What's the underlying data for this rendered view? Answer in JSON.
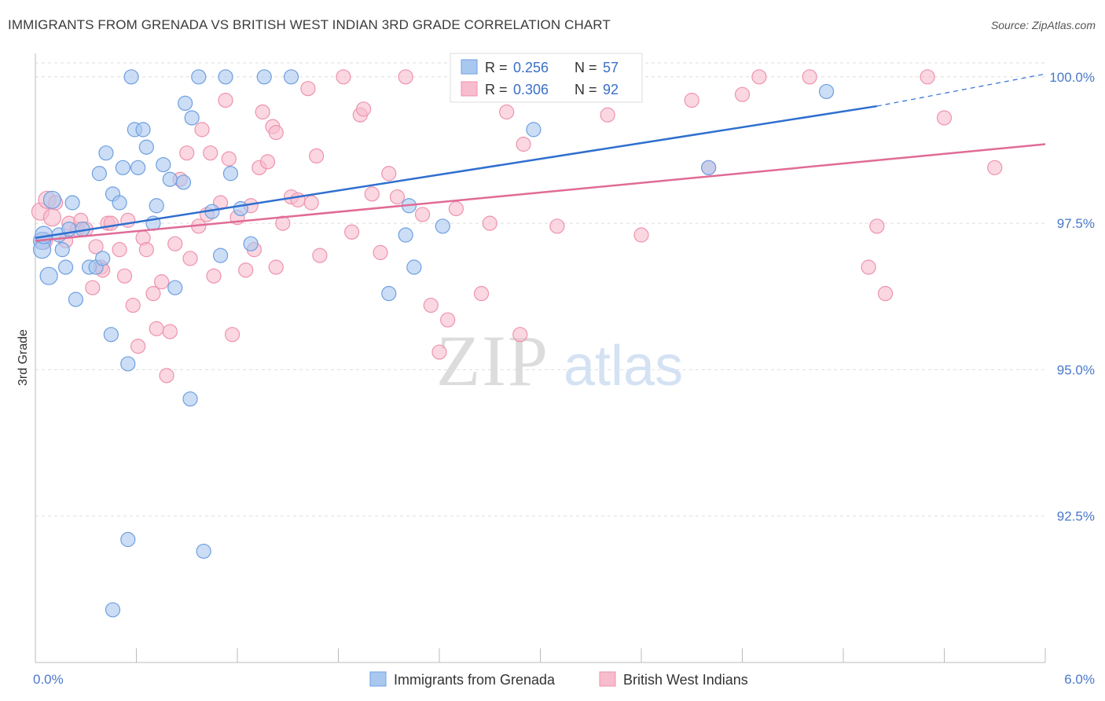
{
  "header": {
    "title": "IMMIGRANTS FROM GRENADA VS BRITISH WEST INDIAN 3RD GRADE CORRELATION CHART",
    "source": "Source: ZipAtlas.com"
  },
  "watermark": {
    "zip": "ZIP",
    "atlas": "atlas"
  },
  "colors": {
    "blue_fill": "#a9c8f0",
    "blue_stroke": "#6f9fe0",
    "blue_line": "#2f6fcf",
    "pink_fill": "#f7bccd",
    "pink_stroke": "#ee93ae",
    "pink_line": "#e06b96",
    "tick_text": "#4a78c9",
    "grid": "#dddddd"
  },
  "chart_data": {
    "type": "scatter",
    "title": "IMMIGRANTS FROM GRENADA VS BRITISH WEST INDIAN 3RD GRADE CORRELATION CHART",
    "ylabel": "3rd Grade",
    "xlabel": "",
    "xlim": [
      0,
      6
    ],
    "ylim": [
      90.0,
      100.4
    ],
    "x_tick_labels": [
      {
        "value": 0,
        "label": "0.0%"
      },
      {
        "value": 6,
        "label": "6.0%"
      }
    ],
    "y_ticks": [
      {
        "value": 100.0,
        "label": "100.0%"
      },
      {
        "value": 97.5,
        "label": "97.5%"
      },
      {
        "value": 95.0,
        "label": "95.0%"
      },
      {
        "value": 92.5,
        "label": "92.5%"
      }
    ],
    "grid": true,
    "legend_placement": "top-center",
    "legend": [
      {
        "r_label": "R =",
        "r_value": "0.256",
        "n_label": "N =",
        "n_value": "57"
      },
      {
        "r_label": "R =",
        "r_value": "0.306",
        "n_label": "N =",
        "n_value": "92"
      }
    ],
    "series": [
      {
        "name": "Immigrants from Grenada",
        "color": "blue",
        "trend": {
          "x0": 0.0,
          "y0": 97.25,
          "x1": 5.0,
          "y1": 99.5,
          "dash_to_x": 6.0,
          "dash_to_y": 100.05
        },
        "points": [
          [
            0.04,
            97.2
          ],
          [
            0.04,
            97.05
          ],
          [
            0.05,
            97.3
          ],
          [
            0.08,
            96.6
          ],
          [
            0.1,
            97.9
          ],
          [
            0.14,
            97.3
          ],
          [
            0.16,
            97.05
          ],
          [
            0.18,
            96.75
          ],
          [
            0.2,
            97.4
          ],
          [
            0.22,
            97.85
          ],
          [
            0.24,
            96.2
          ],
          [
            0.28,
            97.4
          ],
          [
            0.32,
            96.75
          ],
          [
            0.36,
            96.75
          ],
          [
            0.38,
            98.35
          ],
          [
            0.4,
            96.9
          ],
          [
            0.42,
            98.7
          ],
          [
            0.45,
            95.6
          ],
          [
            0.46,
            98.0
          ],
          [
            0.5,
            97.85
          ],
          [
            0.52,
            98.45
          ],
          [
            0.55,
            95.1
          ],
          [
            0.57,
            100.0
          ],
          [
            0.59,
            99.1
          ],
          [
            0.61,
            98.45
          ],
          [
            0.64,
            99.1
          ],
          [
            0.66,
            98.8
          ],
          [
            0.7,
            97.5
          ],
          [
            0.72,
            97.8
          ],
          [
            0.76,
            98.5
          ],
          [
            0.8,
            98.25
          ],
          [
            0.83,
            96.4
          ],
          [
            0.88,
            98.2
          ],
          [
            0.89,
            99.55
          ],
          [
            0.92,
            94.5
          ],
          [
            0.93,
            99.3
          ],
          [
            0.97,
            100.0
          ],
          [
            1.05,
            97.7
          ],
          [
            1.1,
            96.95
          ],
          [
            1.13,
            100.0
          ],
          [
            1.16,
            98.35
          ],
          [
            1.22,
            97.75
          ],
          [
            1.28,
            97.15
          ],
          [
            1.36,
            100.0
          ],
          [
            1.52,
            100.0
          ],
          [
            2.1,
            96.3
          ],
          [
            2.2,
            97.3
          ],
          [
            2.22,
            97.8
          ],
          [
            2.25,
            96.75
          ],
          [
            2.42,
            97.45
          ],
          [
            2.9,
            100.0
          ],
          [
            2.96,
            99.1
          ],
          [
            4.0,
            98.45
          ],
          [
            4.7,
            99.75
          ],
          [
            1.0,
            91.9
          ],
          [
            0.46,
            90.9
          ],
          [
            0.55,
            92.1
          ]
        ]
      },
      {
        "name": "British West Indians",
        "color": "pink",
        "trend": {
          "x0": 0.0,
          "y0": 97.2,
          "x1": 6.0,
          "y1": 98.85
        },
        "points": [
          [
            0.03,
            97.7
          ],
          [
            0.05,
            97.2
          ],
          [
            0.07,
            97.9
          ],
          [
            0.1,
            97.6
          ],
          [
            0.12,
            97.85
          ],
          [
            0.18,
            97.2
          ],
          [
            0.2,
            97.5
          ],
          [
            0.25,
            97.4
          ],
          [
            0.27,
            97.55
          ],
          [
            0.3,
            97.4
          ],
          [
            0.34,
            96.4
          ],
          [
            0.36,
            97.1
          ],
          [
            0.39,
            96.75
          ],
          [
            0.4,
            96.7
          ],
          [
            0.43,
            97.5
          ],
          [
            0.45,
            97.5
          ],
          [
            0.5,
            97.05
          ],
          [
            0.53,
            96.6
          ],
          [
            0.55,
            97.55
          ],
          [
            0.58,
            96.1
          ],
          [
            0.61,
            95.4
          ],
          [
            0.64,
            97.25
          ],
          [
            0.66,
            97.05
          ],
          [
            0.7,
            96.3
          ],
          [
            0.72,
            95.7
          ],
          [
            0.75,
            96.5
          ],
          [
            0.78,
            94.9
          ],
          [
            0.8,
            95.65
          ],
          [
            0.83,
            97.15
          ],
          [
            0.86,
            98.25
          ],
          [
            0.9,
            98.7
          ],
          [
            0.92,
            96.9
          ],
          [
            0.97,
            97.45
          ],
          [
            0.99,
            99.1
          ],
          [
            1.02,
            97.65
          ],
          [
            1.04,
            98.7
          ],
          [
            1.06,
            96.6
          ],
          [
            1.1,
            97.85
          ],
          [
            1.13,
            99.6
          ],
          [
            1.15,
            98.6
          ],
          [
            1.17,
            95.6
          ],
          [
            1.2,
            97.6
          ],
          [
            1.25,
            96.7
          ],
          [
            1.28,
            97.8
          ],
          [
            1.3,
            97.05
          ],
          [
            1.33,
            98.45
          ],
          [
            1.35,
            99.4
          ],
          [
            1.38,
            98.55
          ],
          [
            1.41,
            99.15
          ],
          [
            1.43,
            99.05
          ],
          [
            1.43,
            96.75
          ],
          [
            1.47,
            97.5
          ],
          [
            1.52,
            97.95
          ],
          [
            1.56,
            97.9
          ],
          [
            1.62,
            99.8
          ],
          [
            1.64,
            97.85
          ],
          [
            1.67,
            98.65
          ],
          [
            1.69,
            96.95
          ],
          [
            1.83,
            100.0
          ],
          [
            1.88,
            97.35
          ],
          [
            1.93,
            99.35
          ],
          [
            1.95,
            99.45
          ],
          [
            2.0,
            98.0
          ],
          [
            2.05,
            97.0
          ],
          [
            2.1,
            98.35
          ],
          [
            2.15,
            97.95
          ],
          [
            2.2,
            100.0
          ],
          [
            2.3,
            97.65
          ],
          [
            2.35,
            96.1
          ],
          [
            2.4,
            95.3
          ],
          [
            2.45,
            95.85
          ],
          [
            2.5,
            97.75
          ],
          [
            2.65,
            96.3
          ],
          [
            2.7,
            97.5
          ],
          [
            2.8,
            99.4
          ],
          [
            2.88,
            95.6
          ],
          [
            2.9,
            98.85
          ],
          [
            3.1,
            97.45
          ],
          [
            3.4,
            99.35
          ],
          [
            3.5,
            100.0
          ],
          [
            3.6,
            97.3
          ],
          [
            3.9,
            99.6
          ],
          [
            4.0,
            98.45
          ],
          [
            4.2,
            99.7
          ],
          [
            4.3,
            100.0
          ],
          [
            4.6,
            100.0
          ],
          [
            4.95,
            96.75
          ],
          [
            5.0,
            97.45
          ],
          [
            5.05,
            96.3
          ],
          [
            5.3,
            100.0
          ],
          [
            5.4,
            99.3
          ],
          [
            5.7,
            98.45
          ]
        ]
      }
    ]
  }
}
